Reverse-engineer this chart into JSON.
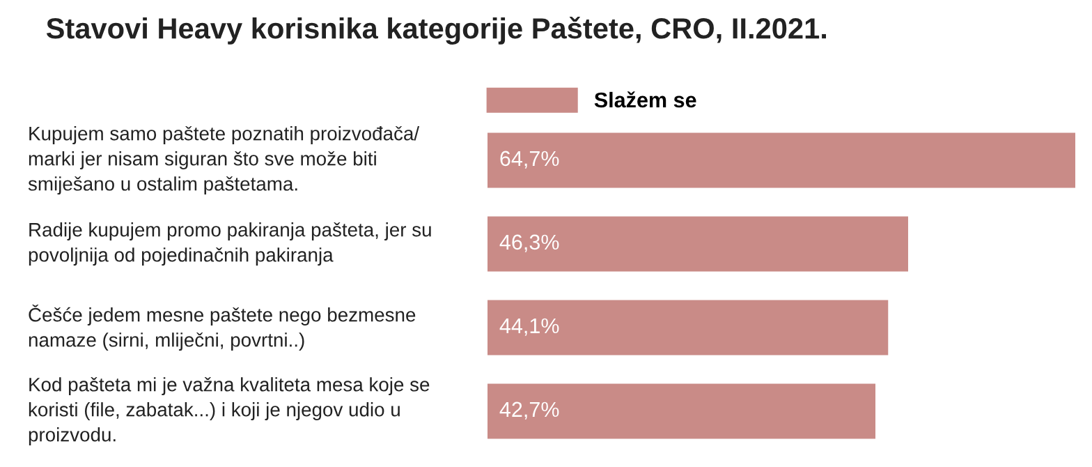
{
  "chart_data": {
    "type": "bar",
    "orientation": "horizontal",
    "title": "Stavovi Heavy korisnika kategorije Paštete, CRO, II.2021.",
    "categories": [
      "Kupujem samo paštete poznatih proizvođača/\nmarki jer nisam siguran što sve može biti\nsmiješano u ostalim paštetama.",
      "Radije kupujem promo pakiranja pašteta, jer su\npovoljnija od pojedinačnih pakiranja",
      "Češće jedem mesne paštete nego bezmesne\nnamaze (sirni, mliječni, povrtni..)",
      "Kod pašteta mi je važna kvaliteta mesa koje se\nkoristi (file, zabatak...) i koji je njegov udio u\nproizvodu."
    ],
    "series": [
      {
        "name": "Slažem se",
        "color": "#c98b87",
        "values": [
          64.7,
          46.3,
          44.1,
          42.7
        ],
        "value_labels": [
          "64,7%",
          "46,3%",
          "44,1%",
          "42,7%"
        ]
      }
    ],
    "legend": "top left"
  }
}
